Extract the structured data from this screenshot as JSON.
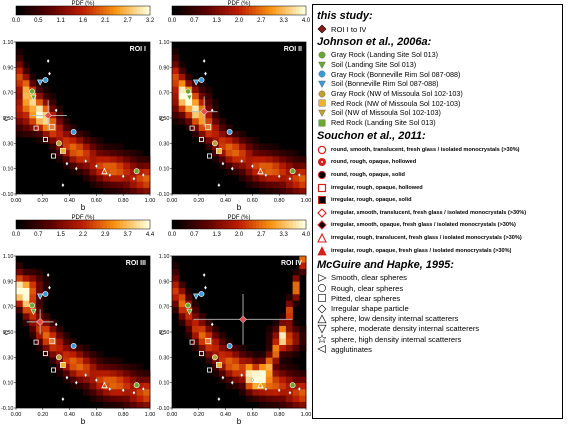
{
  "chart_data": [
    {
      "type": "heatmap",
      "title": "ROI I",
      "colorbar_label": "PDF (%)",
      "colorbar_ticks": [
        "0.0",
        "0.5",
        "1.1",
        "1.6",
        "2.1",
        "2.7",
        "3.2"
      ],
      "xlabel": "b",
      "ylabel": "c",
      "xlim": [
        0,
        1
      ],
      "ylim": [
        -0.1,
        1.1
      ],
      "x_ticks": [
        "0.00",
        "0.20",
        "0.40",
        "0.60",
        "0.80",
        "1.00"
      ],
      "y_ticks": [
        "-0.10",
        "0.10",
        "0.30",
        "0.50",
        "0.70",
        "0.90",
        "1.10"
      ],
      "roi_marker": {
        "b": 0.24,
        "c": 0.52,
        "b_err": 0.14,
        "c_err": 0.12
      },
      "peak": [
        0.1,
        0.55
      ],
      "spread": 0.1
    },
    {
      "type": "heatmap",
      "title": "ROI II",
      "colorbar_label": "PDF (%)",
      "colorbar_ticks": [
        "0.0",
        "0.7",
        "1.3",
        "2.0",
        "2.7",
        "3.3",
        "4.0"
      ],
      "xlabel": "b",
      "ylabel": "c",
      "xlim": [
        0,
        1
      ],
      "ylim": [
        -0.1,
        1.1
      ],
      "x_ticks": [
        "0.00",
        "0.20",
        "0.40",
        "0.60",
        "0.80",
        "1.00"
      ],
      "y_ticks": [
        "-0.10",
        "0.10",
        "0.30",
        "0.50",
        "0.70",
        "0.90",
        "1.10"
      ],
      "roi_marker": {
        "b": 0.24,
        "c": 0.55,
        "b_err": 0.1,
        "c_err": 0.12
      },
      "peak": [
        0.13,
        0.62
      ],
      "spread": 0.09
    },
    {
      "type": "heatmap",
      "title": "ROI III",
      "colorbar_label": "PDF (%)",
      "colorbar_ticks": [
        "0.0",
        "0.7",
        "1.5",
        "2.2",
        "2.9",
        "3.7",
        "4.4"
      ],
      "xlabel": "b",
      "ylabel": "c",
      "xlim": [
        0,
        1
      ],
      "ylim": [
        -0.1,
        1.1
      ],
      "x_ticks": [
        "0.00",
        "0.20",
        "0.40",
        "0.60",
        "0.80",
        "1.00"
      ],
      "y_ticks": [
        "-0.10",
        "0.10",
        "0.30",
        "0.50",
        "0.70",
        "0.90",
        "1.10"
      ],
      "roi_marker": {
        "b": 0.18,
        "c": 0.58,
        "b_err": 0.1,
        "c_err": 0.1
      },
      "peak": [
        0.07,
        0.85
      ],
      "spread": 0.08
    },
    {
      "type": "heatmap",
      "title": "ROI IV",
      "colorbar_label": "PDF (%)",
      "colorbar_ticks": [
        "0.0",
        "0.7",
        "1.3",
        "2.0",
        "2.7",
        "3.3",
        "4.0"
      ],
      "xlabel": "b",
      "ylabel": "c",
      "xlim": [
        0,
        1
      ],
      "ylim": [
        -0.1,
        1.1
      ],
      "x_ticks": [
        "0.00",
        "0.20",
        "0.40",
        "0.60",
        "0.80",
        "1.00"
      ],
      "y_ticks": [
        "-0.10",
        "0.10",
        "0.30",
        "0.50",
        "0.70",
        "0.90",
        "1.10"
      ],
      "roi_marker": {
        "b": 0.53,
        "c": 0.6,
        "b_err": 0.37,
        "c_err": 0.2
      },
      "peak": [
        0.85,
        0.45
      ],
      "spread": 0.07
    }
  ],
  "reference_points": [
    {
      "b": 0.22,
      "c": 0.8,
      "marker": "circle",
      "color": "#3a9bd9"
    },
    {
      "b": 0.18,
      "c": 0.78,
      "marker": "triangle-down",
      "color": "#3a9bd9"
    },
    {
      "b": 0.12,
      "c": 0.71,
      "marker": "circle",
      "color": "#66aa33"
    },
    {
      "b": 0.13,
      "c": 0.66,
      "marker": "triangle-down",
      "color": "#66aa33"
    },
    {
      "b": 0.27,
      "c": 0.43,
      "marker": "square",
      "color": "#e07b39"
    },
    {
      "b": 0.32,
      "c": 0.3,
      "marker": "circle",
      "color": "#c0a030"
    },
    {
      "b": 0.43,
      "c": 0.39,
      "marker": "circle",
      "color": "#3a9bd9"
    },
    {
      "b": 0.35,
      "c": 0.24,
      "marker": "square",
      "color": "#f0b030"
    },
    {
      "b": 0.9,
      "c": 0.08,
      "marker": "circle",
      "color": "#66aa33"
    },
    {
      "b": 0.3,
      "c": 0.56,
      "marker": "diamond",
      "color": "#ffffff"
    },
    {
      "b": 0.52,
      "c": 0.16,
      "marker": "diamond",
      "color": "#ffffff"
    },
    {
      "b": 0.6,
      "c": 0.12,
      "marker": "diamond",
      "color": "#ffffff"
    },
    {
      "b": 0.7,
      "c": 0.05,
      "marker": "diamond",
      "color": "#ffffff"
    },
    {
      "b": 0.8,
      "c": 0.04,
      "marker": "diamond",
      "color": "#ffffff"
    },
    {
      "b": 0.88,
      "c": 0.02,
      "marker": "diamond",
      "color": "#ffffff"
    },
    {
      "b": 0.95,
      "c": 0.05,
      "marker": "diamond",
      "color": "#ffffff"
    },
    {
      "b": 0.24,
      "c": 0.95,
      "marker": "diamond",
      "color": "#ffffff"
    },
    {
      "b": 0.25,
      "c": 0.85,
      "marker": "diamond",
      "color": "#ffffff"
    },
    {
      "b": 0.38,
      "c": 0.14,
      "marker": "diamond",
      "color": "#ffffff"
    },
    {
      "b": 0.45,
      "c": 0.1,
      "marker": "diamond",
      "color": "#ffffff"
    },
    {
      "b": 0.15,
      "c": 0.42,
      "marker": "square-open",
      "color": "#ffffff"
    },
    {
      "b": 0.22,
      "c": 0.33,
      "marker": "square-open",
      "color": "#ffffff"
    },
    {
      "b": 0.28,
      "c": 0.2,
      "marker": "square-open",
      "color": "#ffffff"
    },
    {
      "b": 0.66,
      "c": 0.08,
      "marker": "triangle-open",
      "color": "#ffffff"
    },
    {
      "b": 0.35,
      "c": -0.03,
      "marker": "diamond",
      "color": "#ffffff"
    }
  ],
  "legend": {
    "this_study_title": "this study:",
    "this_study_items": [
      "ROI I to IV"
    ],
    "johnson_title": "Johnson et al., 2006a:",
    "johnson_items": [
      {
        "label": "Gray Rock (Landing Site Sol 013)",
        "marker": "circle",
        "color": "#66aa33"
      },
      {
        "label": "Soil (Landing Site Sol 013)",
        "marker": "triangle-down",
        "color": "#66aa33"
      },
      {
        "label": "Gray Rock (Bonneville Rim Sol 087-088)",
        "marker": "circle",
        "color": "#3a9bd9"
      },
      {
        "label": "Soil (Bonneville Rim Sol 087-088)",
        "marker": "triangle-down",
        "color": "#3a9bd9"
      },
      {
        "label": "Gray Rock (NW of Missoula Sol 102-103)",
        "marker": "circle",
        "color": "#c0a030"
      },
      {
        "label": "Red Rock (NW of Missoula Sol 102-103)",
        "marker": "square",
        "color": "#f0b030"
      },
      {
        "label": "Soil (NW of Missoula Sol 102-103)",
        "marker": "triangle-down",
        "color": "#c0a030"
      },
      {
        "label": "Red Rock (Landing Site Sol 013)",
        "marker": "square",
        "color": "#66aa33"
      }
    ],
    "souchon_title": "Souchon et al., 2011:",
    "souchon_items": [
      {
        "label": "round, smooth, translucent, fresh glass / isolated monocrystals (>30%)",
        "marker": "circle-open"
      },
      {
        "label": "round, rough, opaque, hollowed",
        "marker": "circle-dot"
      },
      {
        "label": "round, rough, opaque, solid",
        "marker": "circle-solid"
      },
      {
        "label": "irregular, rough, opaque, hollowed",
        "marker": "square-open"
      },
      {
        "label": "irregular, rough, opaque, solid",
        "marker": "square-solid"
      },
      {
        "label": "irregular, smooth, translucent, fresh glass / isolated monocrystals (>30%)",
        "marker": "diamond-open"
      },
      {
        "label": "irregular, smooth, opaque, fresh glass / isolated monocrystals (>30%)",
        "marker": "diamond-solid"
      },
      {
        "label": "irregular, rough, translucent, fresh glass / isolated monocrystals (>30%)",
        "marker": "triangle-open"
      },
      {
        "label": "irregular, rough, opaque, fresh glass / isolated monocrystals (>30%)",
        "marker": "triangle-solid"
      }
    ],
    "mcguire_title": "McGuire and Hapke, 1995:",
    "mcguire_items": [
      {
        "label": "Smooth, clear spheres",
        "marker": "tri-right"
      },
      {
        "label": "Rough, clear spheres",
        "marker": "circle-outline"
      },
      {
        "label": "Pitted, clear spheres",
        "marker": "square-outline"
      },
      {
        "label": "Irregular shape particle",
        "marker": "diamond-outline"
      },
      {
        "label": "sphere, low density internal scatterers",
        "marker": "tri-up"
      },
      {
        "label": "sphere, moderate density internal scatterers",
        "marker": "tri-down"
      },
      {
        "label": "sphere, high density internal scatterers",
        "marker": "star"
      },
      {
        "label": "agglutinates",
        "marker": "tri-left"
      }
    ]
  }
}
